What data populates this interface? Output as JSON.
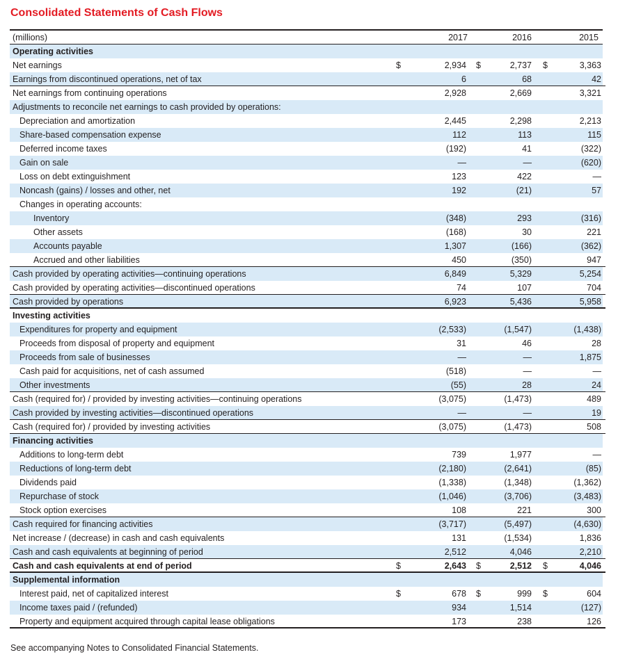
{
  "title": "Consolidated Statements of Cash Flows",
  "header": {
    "label": "(millions)",
    "years": [
      "2017",
      "2016",
      "2015"
    ]
  },
  "rows": [
    {
      "label": "Operating activities",
      "indent": 0,
      "bold": true,
      "v": [
        "",
        "",
        ""
      ]
    },
    {
      "label": "Net earnings",
      "indent": 0,
      "dollar": true,
      "v": [
        "2,934",
        "2,737",
        "3,363"
      ]
    },
    {
      "label": "Earnings from discontinued operations, net of tax",
      "indent": 0,
      "v": [
        "6",
        "68",
        "42"
      ],
      "rule": true
    },
    {
      "label": "Net earnings from continuing operations",
      "indent": 0,
      "v": [
        "2,928",
        "2,669",
        "3,321"
      ]
    },
    {
      "label": "Adjustments to reconcile net earnings to cash provided by operations:",
      "indent": 0,
      "v": [
        "",
        "",
        ""
      ]
    },
    {
      "label": "Depreciation and amortization",
      "indent": 1,
      "v": [
        "2,445",
        "2,298",
        "2,213"
      ]
    },
    {
      "label": "Share-based compensation expense",
      "indent": 1,
      "v": [
        "112",
        "113",
        "115"
      ]
    },
    {
      "label": "Deferred income taxes",
      "indent": 1,
      "v": [
        "(192)",
        "41",
        "(322)"
      ]
    },
    {
      "label": "Gain on sale",
      "indent": 1,
      "v": [
        "—",
        "—",
        "(620)"
      ]
    },
    {
      "label": "Loss on debt extinguishment",
      "indent": 1,
      "v": [
        "123",
        "422",
        "—"
      ]
    },
    {
      "label": "Noncash (gains) / losses and other, net",
      "indent": 1,
      "v": [
        "192",
        "(21)",
        "57"
      ]
    },
    {
      "label": "Changes in operating accounts:",
      "indent": 1,
      "v": [
        "",
        "",
        ""
      ]
    },
    {
      "label": "Inventory",
      "indent": 2,
      "v": [
        "(348)",
        "293",
        "(316)"
      ]
    },
    {
      "label": "Other assets",
      "indent": 2,
      "v": [
        "(168)",
        "30",
        "221"
      ]
    },
    {
      "label": "Accounts payable",
      "indent": 2,
      "v": [
        "1,307",
        "(166)",
        "(362)"
      ]
    },
    {
      "label": "Accrued and other liabilities",
      "indent": 2,
      "v": [
        "450",
        "(350)",
        "947"
      ],
      "rule": true
    },
    {
      "label": "Cash provided by operating activities—continuing operations",
      "indent": 0,
      "v": [
        "6,849",
        "5,329",
        "5,254"
      ]
    },
    {
      "label": "Cash provided by operating activities—discontinued operations",
      "indent": 0,
      "v": [
        "74",
        "107",
        "704"
      ],
      "rule": true
    },
    {
      "label": "Cash provided by operations",
      "indent": 0,
      "v": [
        "6,923",
        "5,436",
        "5,958"
      ],
      "rule2": true
    },
    {
      "label": "Investing activities",
      "indent": 0,
      "bold": true,
      "v": [
        "",
        "",
        ""
      ]
    },
    {
      "label": "Expenditures for property and equipment",
      "indent": 1,
      "v": [
        "(2,533)",
        "(1,547)",
        "(1,438)"
      ]
    },
    {
      "label": "Proceeds from disposal of property and equipment",
      "indent": 1,
      "v": [
        "31",
        "46",
        "28"
      ]
    },
    {
      "label": "Proceeds from sale of businesses",
      "indent": 1,
      "v": [
        "—",
        "—",
        "1,875"
      ]
    },
    {
      "label": "Cash paid for acquisitions, net of cash assumed",
      "indent": 1,
      "v": [
        "(518)",
        "—",
        "—"
      ]
    },
    {
      "label": "Other investments",
      "indent": 1,
      "v": [
        "(55)",
        "28",
        "24"
      ],
      "rule": true
    },
    {
      "label": "Cash (required for) / provided by investing activities—continuing operations",
      "indent": 0,
      "v": [
        "(3,075)",
        "(1,473)",
        "489"
      ]
    },
    {
      "label": "Cash provided by investing activities—discontinued operations",
      "indent": 0,
      "v": [
        "—",
        "—",
        "19"
      ],
      "rule": true
    },
    {
      "label": "Cash (required for) / provided by investing activities",
      "indent": 0,
      "v": [
        "(3,075)",
        "(1,473)",
        "508"
      ],
      "rule": true
    },
    {
      "label": "Financing activities",
      "indent": 0,
      "bold": true,
      "v": [
        "",
        "",
        ""
      ]
    },
    {
      "label": "Additions to long-term debt",
      "indent": 1,
      "v": [
        "739",
        "1,977",
        "—"
      ]
    },
    {
      "label": "Reductions of long-term debt",
      "indent": 1,
      "v": [
        "(2,180)",
        "(2,641)",
        "(85)"
      ]
    },
    {
      "label": "Dividends paid",
      "indent": 1,
      "v": [
        "(1,338)",
        "(1,348)",
        "(1,362)"
      ]
    },
    {
      "label": "Repurchase of stock",
      "indent": 1,
      "v": [
        "(1,046)",
        "(3,706)",
        "(3,483)"
      ]
    },
    {
      "label": "Stock option exercises",
      "indent": 1,
      "v": [
        "108",
        "221",
        "300"
      ],
      "rule": true
    },
    {
      "label": "Cash required for financing activities",
      "indent": 0,
      "v": [
        "(3,717)",
        "(5,497)",
        "(4,630)"
      ]
    },
    {
      "label": "Net increase / (decrease) in cash and cash equivalents",
      "indent": 0,
      "v": [
        "131",
        "(1,534)",
        "1,836"
      ]
    },
    {
      "label": "Cash and cash equivalents at beginning of period",
      "indent": 0,
      "v": [
        "2,512",
        "4,046",
        "2,210"
      ],
      "rule": true
    },
    {
      "label": "Cash and cash equivalents at end of period",
      "indent": 0,
      "bold": true,
      "dollar": true,
      "v": [
        "2,643",
        "2,512",
        "4,046"
      ],
      "rule2": true
    },
    {
      "label": "Supplemental information",
      "indent": 0,
      "bold": true,
      "v": [
        "",
        "",
        ""
      ]
    },
    {
      "label": "Interest paid, net of capitalized interest",
      "indent": 1,
      "dollar": true,
      "v": [
        "678",
        "999",
        "604"
      ]
    },
    {
      "label": "Income taxes paid / (refunded)",
      "indent": 1,
      "v": [
        "934",
        "1,514",
        "(127)"
      ]
    },
    {
      "label": "Property and equipment acquired through capital lease obligations",
      "indent": 1,
      "v": [
        "173",
        "238",
        "126"
      ],
      "rule2": true
    }
  ],
  "currency_symbol": "$",
  "footnote": "See accompanying Notes to Consolidated Financial Statements.",
  "colors": {
    "title": "#e31b23",
    "shade": "#d9eaf7",
    "text": "#231f20"
  }
}
